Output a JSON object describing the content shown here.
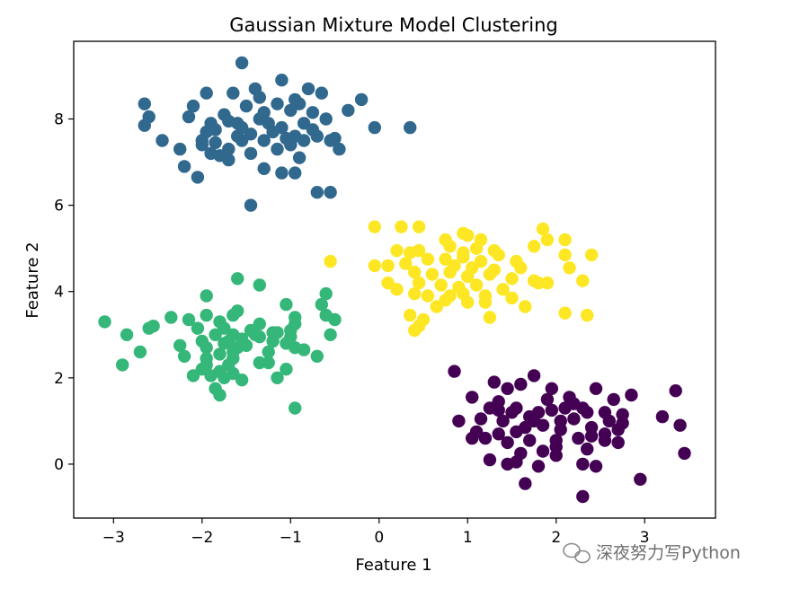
{
  "chart_data": {
    "type": "scatter",
    "title": "Gaussian Mixture Model Clustering",
    "xlabel": "Feature 1",
    "ylabel": "Feature 2",
    "xlim": [
      -3.45,
      3.8
    ],
    "ylim": [
      -1.25,
      9.8
    ],
    "xticks": [
      -3,
      -2,
      -1,
      0,
      1,
      2,
      3
    ],
    "yticks": [
      0,
      2,
      4,
      6,
      8
    ],
    "grid": false,
    "legend": "none",
    "colormap": "viridis",
    "series": [
      {
        "color": "#440154",
        "points": [
          [
            0.85,
            2.15
          ],
          [
            1.75,
            2.05
          ],
          [
            1.3,
            1.9
          ],
          [
            1.6,
            1.85
          ],
          [
            1.45,
            1.75
          ],
          [
            1.05,
            1.55
          ],
          [
            1.35,
            1.45
          ],
          [
            1.95,
            1.75
          ],
          [
            2.45,
            1.75
          ],
          [
            2.85,
            1.6
          ],
          [
            3.35,
            1.7
          ],
          [
            2.65,
            1.5
          ],
          [
            2.15,
            1.55
          ],
          [
            1.25,
            1.3
          ],
          [
            1.55,
            1.3
          ],
          [
            1.95,
            1.25
          ],
          [
            2.3,
            1.3
          ],
          [
            2.55,
            1.2
          ],
          [
            2.75,
            1.15
          ],
          [
            0.9,
            1.0
          ],
          [
            1.15,
            1.05
          ],
          [
            1.4,
            1.0
          ],
          [
            1.7,
            1.1
          ],
          [
            1.8,
            1.2
          ],
          [
            2.05,
            1.0
          ],
          [
            2.2,
            1.05
          ],
          [
            2.6,
            1.0
          ],
          [
            2.75,
            0.95
          ],
          [
            3.2,
            1.1
          ],
          [
            3.4,
            0.9
          ],
          [
            1.1,
            0.75
          ],
          [
            1.35,
            0.7
          ],
          [
            1.55,
            0.75
          ],
          [
            1.65,
            0.85
          ],
          [
            1.85,
            0.9
          ],
          [
            2.05,
            0.8
          ],
          [
            2.4,
            0.85
          ],
          [
            2.55,
            0.7
          ],
          [
            1.2,
            0.6
          ],
          [
            1.45,
            0.5
          ],
          [
            1.7,
            0.55
          ],
          [
            2.0,
            0.55
          ],
          [
            2.25,
            0.6
          ],
          [
            2.4,
            0.65
          ],
          [
            2.55,
            0.55
          ],
          [
            1.05,
            0.6
          ],
          [
            1.6,
            0.25
          ],
          [
            1.85,
            0.3
          ],
          [
            2.0,
            0.2
          ],
          [
            2.35,
            0.35
          ],
          [
            2.7,
            0.5
          ],
          [
            1.25,
            0.1
          ],
          [
            1.45,
            0.0
          ],
          [
            1.55,
            0.05
          ],
          [
            1.8,
            -0.05
          ],
          [
            2.3,
            0.0
          ],
          [
            2.45,
            -0.05
          ],
          [
            2.95,
            -0.35
          ],
          [
            1.65,
            -0.45
          ],
          [
            2.3,
            -0.75
          ],
          [
            3.45,
            0.25
          ],
          [
            1.9,
            1.5
          ],
          [
            2.1,
            1.3
          ],
          [
            2.35,
            1.2
          ],
          [
            1.35,
            1.25
          ],
          [
            2.7,
            0.8
          ],
          [
            1.75,
            1.0
          ],
          [
            2.2,
            1.4
          ],
          [
            1.5,
            1.2
          ],
          [
            2.0,
            0.4
          ]
        ]
      },
      {
        "color": "#31688e",
        "points": [
          [
            -1.55,
            9.3
          ],
          [
            -1.1,
            8.9
          ],
          [
            -1.4,
            8.7
          ],
          [
            -1.95,
            8.6
          ],
          [
            -1.65,
            8.6
          ],
          [
            -1.35,
            8.5
          ],
          [
            -0.8,
            8.7
          ],
          [
            -0.65,
            8.6
          ],
          [
            -0.95,
            8.45
          ],
          [
            -0.2,
            8.45
          ],
          [
            -2.65,
            8.35
          ],
          [
            -2.1,
            8.3
          ],
          [
            -1.5,
            8.3
          ],
          [
            -1.15,
            8.35
          ],
          [
            -0.9,
            8.35
          ],
          [
            -0.35,
            8.2
          ],
          [
            -2.6,
            8.05
          ],
          [
            -2.15,
            8.05
          ],
          [
            -1.75,
            8.1
          ],
          [
            -1.3,
            8.15
          ],
          [
            -1.0,
            8.2
          ],
          [
            -0.75,
            8.15
          ],
          [
            -2.65,
            7.85
          ],
          [
            -1.9,
            7.9
          ],
          [
            -1.7,
            7.95
          ],
          [
            -1.55,
            7.8
          ],
          [
            -1.25,
            7.9
          ],
          [
            -1.1,
            7.8
          ],
          [
            -0.85,
            7.9
          ],
          [
            -0.6,
            8.0
          ],
          [
            -0.05,
            7.8
          ],
          [
            0.35,
            7.8
          ],
          [
            -1.95,
            7.7
          ],
          [
            -1.6,
            7.6
          ],
          [
            -1.45,
            7.65
          ],
          [
            -1.2,
            7.7
          ],
          [
            -0.95,
            7.6
          ],
          [
            -0.75,
            7.75
          ],
          [
            -2.45,
            7.5
          ],
          [
            -2.0,
            7.5
          ],
          [
            -1.85,
            7.45
          ],
          [
            -1.55,
            7.5
          ],
          [
            -1.3,
            7.5
          ],
          [
            -1.0,
            7.4
          ],
          [
            -0.7,
            7.6
          ],
          [
            -0.55,
            7.5
          ],
          [
            -2.25,
            7.3
          ],
          [
            -1.9,
            7.2
          ],
          [
            -1.7,
            7.3
          ],
          [
            -1.45,
            7.2
          ],
          [
            -1.15,
            7.3
          ],
          [
            -0.9,
            7.1
          ],
          [
            -0.45,
            7.3
          ],
          [
            -2.2,
            6.9
          ],
          [
            -1.7,
            7.05
          ],
          [
            -1.3,
            6.85
          ],
          [
            -1.1,
            6.75
          ],
          [
            -0.95,
            6.75
          ],
          [
            -2.05,
            6.65
          ],
          [
            -0.7,
            6.3
          ],
          [
            -0.55,
            6.3
          ],
          [
            -1.45,
            6.0
          ],
          [
            -1.8,
            7.15
          ],
          [
            -1.6,
            7.9
          ],
          [
            -0.5,
            7.55
          ],
          [
            -1.35,
            8.0
          ],
          [
            -2.0,
            7.4
          ],
          [
            -1.85,
            7.75
          ],
          [
            -1.05,
            7.55
          ],
          [
            -0.85,
            7.5
          ]
        ]
      },
      {
        "color": "#35b779",
        "points": [
          [
            -1.6,
            4.3
          ],
          [
            -1.35,
            4.15
          ],
          [
            -0.6,
            3.95
          ],
          [
            -1.95,
            3.9
          ],
          [
            -1.05,
            3.7
          ],
          [
            -0.65,
            3.7
          ],
          [
            -1.6,
            3.55
          ],
          [
            -2.35,
            3.4
          ],
          [
            -1.95,
            3.45
          ],
          [
            -1.65,
            3.45
          ],
          [
            -0.95,
            3.4
          ],
          [
            -0.6,
            3.45
          ],
          [
            -0.5,
            3.35
          ],
          [
            -3.1,
            3.3
          ],
          [
            -2.15,
            3.35
          ],
          [
            -1.8,
            3.3
          ],
          [
            -1.35,
            3.25
          ],
          [
            -0.95,
            3.25
          ],
          [
            -2.6,
            3.15
          ],
          [
            -2.55,
            3.2
          ],
          [
            -2.05,
            3.15
          ],
          [
            -1.75,
            3.15
          ],
          [
            -1.45,
            3.1
          ],
          [
            -1.2,
            3.05
          ],
          [
            -1.0,
            3.1
          ],
          [
            -2.85,
            3.0
          ],
          [
            -1.85,
            3.0
          ],
          [
            -1.65,
            3.0
          ],
          [
            -1.35,
            2.95
          ],
          [
            -1.15,
            3.05
          ],
          [
            -0.55,
            3.0
          ],
          [
            -2.0,
            2.85
          ],
          [
            -1.7,
            2.85
          ],
          [
            -1.55,
            2.9
          ],
          [
            -1.2,
            2.85
          ],
          [
            -1.05,
            2.8
          ],
          [
            -2.25,
            2.75
          ],
          [
            -1.95,
            2.7
          ],
          [
            -1.6,
            2.7
          ],
          [
            -0.95,
            2.7
          ],
          [
            -0.85,
            2.65
          ],
          [
            -2.7,
            2.6
          ],
          [
            -1.8,
            2.55
          ],
          [
            -1.65,
            2.6
          ],
          [
            -1.25,
            2.6
          ],
          [
            -2.2,
            2.5
          ],
          [
            -1.95,
            2.45
          ],
          [
            -1.65,
            2.45
          ],
          [
            -0.7,
            2.5
          ],
          [
            -2.9,
            2.3
          ],
          [
            -1.95,
            2.3
          ],
          [
            -1.7,
            2.3
          ],
          [
            -1.35,
            2.35
          ],
          [
            -1.25,
            2.35
          ],
          [
            -1.8,
            2.15
          ],
          [
            -1.65,
            2.1
          ],
          [
            -1.05,
            2.2
          ],
          [
            -2.1,
            2.05
          ],
          [
            -1.9,
            2.05
          ],
          [
            -1.75,
            2.0
          ],
          [
            -1.55,
            1.95
          ],
          [
            -1.15,
            2.0
          ],
          [
            -1.85,
            1.75
          ],
          [
            -1.8,
            1.6
          ],
          [
            -0.95,
            1.3
          ],
          [
            -2.0,
            2.2
          ],
          [
            -1.5,
            2.75
          ],
          [
            -1.4,
            3.0
          ],
          [
            -1.0,
            2.95
          ],
          [
            -1.75,
            2.8
          ]
        ]
      },
      {
        "color": "#fde725",
        "points": [
          [
            -0.05,
            5.5
          ],
          [
            0.25,
            5.5
          ],
          [
            0.45,
            5.5
          ],
          [
            0.95,
            5.35
          ],
          [
            1.0,
            5.3
          ],
          [
            1.85,
            5.45
          ],
          [
            0.75,
            5.2
          ],
          [
            1.15,
            5.2
          ],
          [
            1.9,
            5.2
          ],
          [
            2.1,
            5.2
          ],
          [
            0.8,
            5.05
          ],
          [
            1.1,
            5.0
          ],
          [
            1.3,
            4.95
          ],
          [
            1.75,
            5.05
          ],
          [
            0.2,
            4.95
          ],
          [
            0.35,
            4.9
          ],
          [
            0.45,
            4.95
          ],
          [
            0.95,
            4.9
          ],
          [
            1.35,
            4.85
          ],
          [
            2.1,
            4.85
          ],
          [
            2.4,
            4.85
          ],
          [
            -0.55,
            4.7
          ],
          [
            0.55,
            4.75
          ],
          [
            0.75,
            4.75
          ],
          [
            0.95,
            4.8
          ],
          [
            1.15,
            4.7
          ],
          [
            1.55,
            4.7
          ],
          [
            -0.05,
            4.6
          ],
          [
            0.1,
            4.6
          ],
          [
            0.3,
            4.65
          ],
          [
            0.85,
            4.6
          ],
          [
            1.05,
            4.55
          ],
          [
            1.3,
            4.5
          ],
          [
            1.6,
            4.55
          ],
          [
            2.15,
            4.55
          ],
          [
            0.4,
            4.45
          ],
          [
            0.6,
            4.4
          ],
          [
            0.8,
            4.45
          ],
          [
            1.0,
            4.35
          ],
          [
            1.25,
            4.4
          ],
          [
            1.5,
            4.3
          ],
          [
            1.75,
            4.25
          ],
          [
            1.9,
            4.2
          ],
          [
            2.3,
            4.25
          ],
          [
            0.1,
            4.2
          ],
          [
            0.45,
            4.2
          ],
          [
            0.7,
            4.15
          ],
          [
            0.9,
            4.1
          ],
          [
            1.1,
            4.15
          ],
          [
            1.4,
            4.05
          ],
          [
            1.8,
            4.2
          ],
          [
            0.2,
            4.05
          ],
          [
            0.4,
            3.95
          ],
          [
            0.55,
            3.9
          ],
          [
            0.8,
            3.9
          ],
          [
            0.95,
            3.95
          ],
          [
            1.2,
            3.9
          ],
          [
            1.5,
            3.85
          ],
          [
            0.75,
            3.8
          ],
          [
            1.0,
            3.75
          ],
          [
            1.2,
            3.75
          ],
          [
            0.65,
            3.65
          ],
          [
            1.65,
            3.65
          ],
          [
            2.1,
            3.5
          ],
          [
            2.35,
            3.45
          ],
          [
            0.35,
            3.45
          ],
          [
            0.5,
            3.35
          ],
          [
            1.25,
            3.4
          ],
          [
            0.45,
            3.2
          ],
          [
            0.4,
            3.1
          ]
        ]
      }
    ]
  },
  "watermark": {
    "text": "深夜努力写Python",
    "icon": "wechat-icon"
  }
}
